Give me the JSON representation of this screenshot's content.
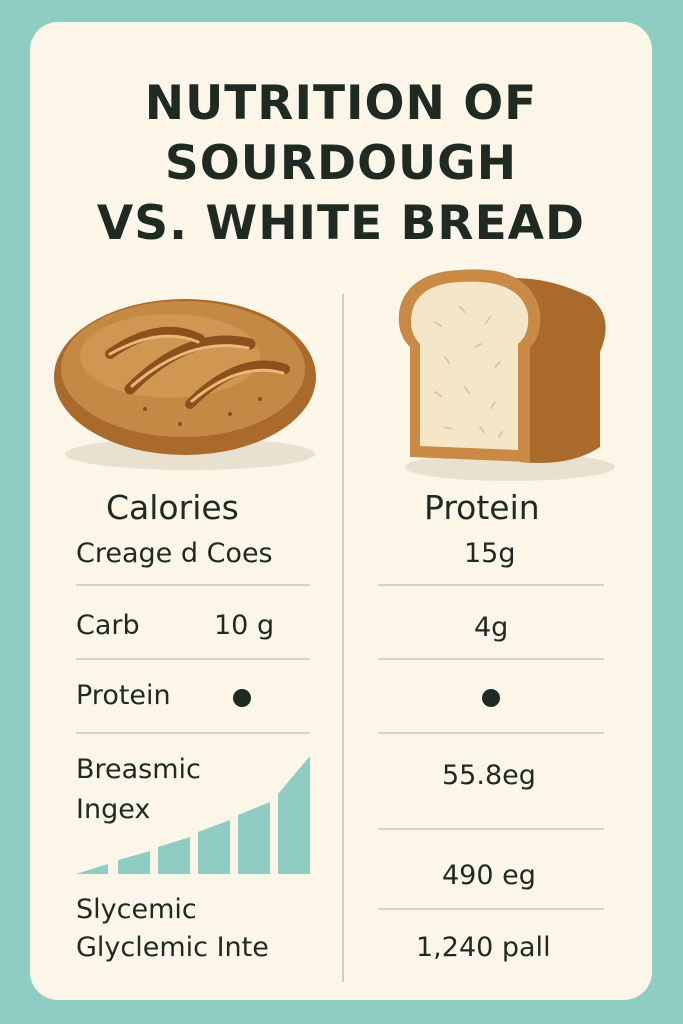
{
  "title": [
    "NUTRITION OF",
    "SOURDOUGH",
    "VS. WHITE BREAD"
  ],
  "left": {
    "header": "Calories",
    "sub": "Creage d Coes",
    "rows": [
      {
        "label": "Carb",
        "value": "10 g"
      },
      {
        "label": "Protein"
      }
    ],
    "lower_label_1": [
      "Breasmic",
      "Ingex"
    ],
    "lower_label_2": [
      "Slycemic",
      "Glyclemic Inte"
    ],
    "bars_icon": "rising-bars-icon"
  },
  "right": {
    "header": "Protein",
    "values": [
      "15g",
      "4g",
      "55.8eg",
      "490 eg",
      "1,240 pall"
    ]
  },
  "colors": {
    "background": "#8fcdc2",
    "card": "#fbf6e8",
    "text": "#1f2a22",
    "bars": "#8fcdc2"
  }
}
